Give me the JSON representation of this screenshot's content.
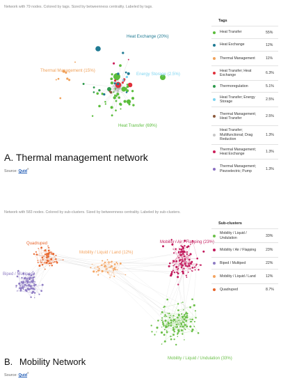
{
  "panel_a": {
    "subtitle": "Network with 79 nodes. Colored by tags. Sized by betweenness centrality. Labeled by tags.",
    "title_letter": "A.",
    "title_text": "Thermal management network",
    "source_prefix": "Source:",
    "source_link": "Quid",
    "source_mark": "®",
    "legend_heading": "Tags",
    "legend": [
      {
        "label": "Heat Transfer",
        "pct": "55%",
        "color": "#5bbd3c"
      },
      {
        "label": "Heat Exchange",
        "pct": "12%",
        "color": "#1f7a93"
      },
      {
        "label": "Thermal Management",
        "pct": "11%",
        "color": "#f0a15a"
      },
      {
        "label": "Heat Transfer; Heat Exchange",
        "pct": "6.3%",
        "color": "#e0303a"
      },
      {
        "label": "Thermoregulation",
        "pct": "5.1%",
        "color": "#2e9a4c"
      },
      {
        "label": "Heat Transfer; Energy Storage",
        "pct": "2.5%",
        "color": "#7dd4f0"
      },
      {
        "label": "Thermal Management; Heat Transfer",
        "pct": "2.5%",
        "color": "#8c5a3c"
      },
      {
        "label": "Heat Transfer; Multifunctional; Drag Reduction",
        "pct": "1.3%",
        "color": "#c8c8c8"
      },
      {
        "label": "Thermal Management; Heat Exchange",
        "pct": "1.3%",
        "color": "#cc1f5a"
      },
      {
        "label": "Thermal Management; Piezoelectric; Pump",
        "pct": "1.3%",
        "color": "#8a6fc2"
      }
    ],
    "network_labels": [
      {
        "text": "Heat Exchange (20%)",
        "color": "#1f7a93"
      },
      {
        "text": "Thermal Management (15%)",
        "color": "#f0a15a"
      },
      {
        "text": "Energy Storage (2.5%)",
        "color": "#7dd4f0"
      },
      {
        "text": "Heat Transfer (69%)",
        "color": "#5bbd3c"
      }
    ]
  },
  "panel_b": {
    "subtitle": "Network with 583 nodes. Colored by sub-clusters. Sized by betweenness centrality. Labeled by sub-clusters.",
    "title_letter": "B.",
    "title_text": "Mobility Network",
    "source_prefix": "Source:",
    "source_link": "Quid",
    "source_mark": "®",
    "legend_heading": "Sub-clusters",
    "legend": [
      {
        "label": "Mobility / Liquid / Undulation",
        "pct": "33%",
        "color": "#6cc04a"
      },
      {
        "label": "Mobility / Air / Flapping",
        "pct": "23%",
        "color": "#c2185b"
      },
      {
        "label": "Biped / Multiped",
        "pct": "22%",
        "color": "#8e7cc3"
      },
      {
        "label": "Mobility / Liquid / Land",
        "pct": "12%",
        "color": "#f4a460"
      },
      {
        "label": "Quadruped",
        "pct": "8.7%",
        "color": "#e8652c"
      }
    ],
    "network_labels": [
      {
        "text": "Quadruped",
        "color": "#e8652c"
      },
      {
        "text": "Mobility / Liquid / Land (12%)",
        "color": "#f4a460"
      },
      {
        "text": "Mobility / Air / Flapping (23%)",
        "color": "#c2185b"
      },
      {
        "text": "Biped / Multiped",
        "color": "#8e7cc3"
      },
      {
        "text": "Mobility / Liquid / Undulation (33%)",
        "color": "#6cc04a"
      }
    ]
  }
}
